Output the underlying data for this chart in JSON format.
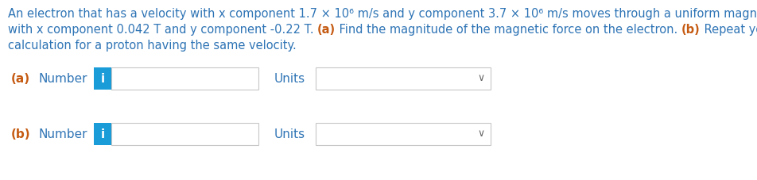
{
  "bg_color": "#ffffff",
  "text_blue": "#2e74b5",
  "text_orange": "#c55a11",
  "text_black": "#1a1a1a",
  "info_btn_color": "#1a9cd8",
  "info_btn_text_color": "#ffffff",
  "input_bg": "#ffffff",
  "input_border": "#c8c8c8",
  "dropdown_bg": "#ffffff",
  "dropdown_border": "#c8c8c8",
  "line1": "An electron that has a velocity with x component 1.7 × 10⁶ m/s and y component 3.7 × 10⁶ m/s moves through a uniform magnetic field",
  "line2_before_a": "with x component 0.042 T and y component -0.22 T. ",
  "line2_a": "(a)",
  "line2_after_a": " Find the magnitude of the magnetic force on the electron. ",
  "line2_b": "(b)",
  "line2_after_b": " Repeat your",
  "line3": "calculation for a proton having the same velocity.",
  "label_a": "(a)",
  "label_b": "(b)",
  "number_text": "Number",
  "units_text": "Units",
  "info_i": "i",
  "chevron": "∨",
  "font_size_para": 10.5,
  "font_size_label": 11,
  "font_size_number": 11,
  "font_size_units": 11,
  "font_size_i": 11,
  "font_size_chevron": 9
}
